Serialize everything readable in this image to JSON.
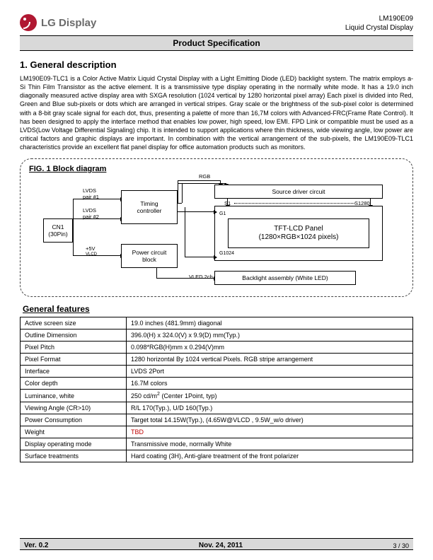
{
  "header": {
    "logo_text": "LG Display",
    "model": "LM190E09",
    "product_type": "Liquid Crystal Display",
    "titlebar": "Product Specification"
  },
  "section1": {
    "heading": "1. General description",
    "body": "LM190E09-TLC1 is a Color Active Matrix Liquid Crystal Display with a Light Emitting Diode (LED)  backlight system. The matrix employs a-Si Thin Film Transistor as the active element. It is a transmissive type display operating in the normally white mode. It has a 19.0 inch diagonally measured active display area with SXGA resolution (1024 vertical by 1280 horizontal pixel array) Each pixel is divided into Red, Green and Blue sub-pixels or dots which are arranged in vertical stripes. Gray scale or the brightness of the sub-pixel color is determined with a 8-bit gray scale signal for each dot, thus, presenting a palette of more than 16,7M colors with Advanced-FRC(Frame Rate Control). It has been designed to apply the interface method that enables low power, high speed, low EMI. FPD Link or compatible must be used as a LVDS(Low Voltage Differential Signaling) chip. It is intended to support applications where thin thickness, wide viewing angle, low power are critical factors and graphic displays are important. In combination with the vertical arrangement of the sub-pixels, the LM190E09-TLC1 characteristics provide an excellent flat panel display for office automation products such as monitors."
  },
  "figure": {
    "title": "FIG. 1  Block diagram",
    "labels": {
      "cn1": "CN1\n(30Pin)",
      "lvds1": "LVDS\npair #1",
      "lvds2": "LVDS\npair #2",
      "p5v": "+5V",
      "vlcd": "VLCD",
      "timing": "Timing\ncontroller",
      "power": "Power circuit\nblock",
      "rgb": "RGB",
      "source": "Source driver circuit",
      "s1": "S1",
      "s1280": "S1280",
      "g1": "G1",
      "g1024": "G1024",
      "panel": "TFT-LCD Panel\n(1280×RGB×1024 pixels)",
      "vled": "VLED 2ch",
      "backlight": "Backlight assembly (White LED)"
    }
  },
  "features": {
    "heading": "General features",
    "rows": [
      [
        "Active screen size",
        "19.0 inches (481.9mm) diagonal"
      ],
      [
        "Outline Dimension",
        "396.0(H) x 324.0(V) x 9.9(D) mm(Typ.)"
      ],
      [
        "Pixel Pitch",
        "0.098*RGB(H)mm x 0.294(V)mm"
      ],
      [
        "Pixel Format",
        "1280 horizontal By 1024 vertical Pixels. RGB stripe arrangement"
      ],
      [
        "Interface",
        "LVDS 2Port"
      ],
      [
        "Color depth",
        "16.7M colors"
      ],
      [
        "Luminance, white",
        "250 cd/m² (Center 1Point, typ)"
      ],
      [
        "Viewing Angle (CR>10)",
        "R/L 170(Typ.), U/D 160(Typ.)"
      ],
      [
        "Power Consumption",
        "Target total 14.15W(Typ.), (4.65W@VLCD , 9.5W_w/o driver)"
      ],
      [
        "Weight",
        "TBD"
      ],
      [
        "Display operating mode",
        "Transmissive mode, normally White"
      ],
      [
        "Surface treatments",
        "Hard coating (3H), Anti-glare treatment of the front polarizer"
      ]
    ]
  },
  "footer": {
    "version": "Ver. 0.2",
    "date": "Nov. 24, 2011",
    "page": "3 / 30"
  }
}
